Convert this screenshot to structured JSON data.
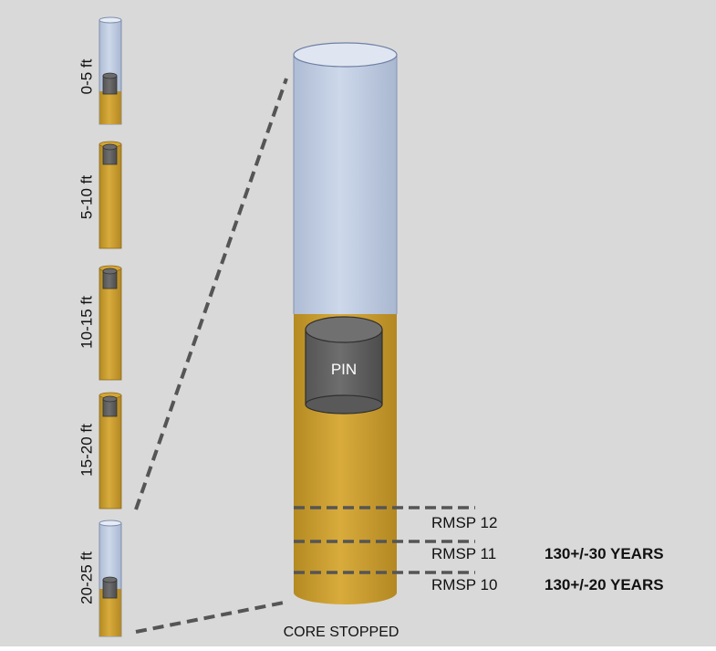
{
  "core_segments": [
    {
      "label": "0-5 ft"
    },
    {
      "label": "5-10 ft"
    },
    {
      "label": "10-15 ft"
    },
    {
      "label": "15-20 ft"
    },
    {
      "label": "20-25 ft"
    }
  ],
  "pin_label": "PIN",
  "layers": [
    {
      "label": "RMSP 12",
      "age": ""
    },
    {
      "label": "RMSP 11",
      "age": "130+/-30 YEARS"
    },
    {
      "label": "RMSP 10",
      "age": "130+/-20 YEARS"
    }
  ],
  "bottom_label": "CORE STOPPED",
  "colors": {
    "background": "#d9d9d9",
    "sediment": "#d4a535",
    "water": "#c8d4e6",
    "pin": "#676767",
    "dash": "#555555"
  }
}
